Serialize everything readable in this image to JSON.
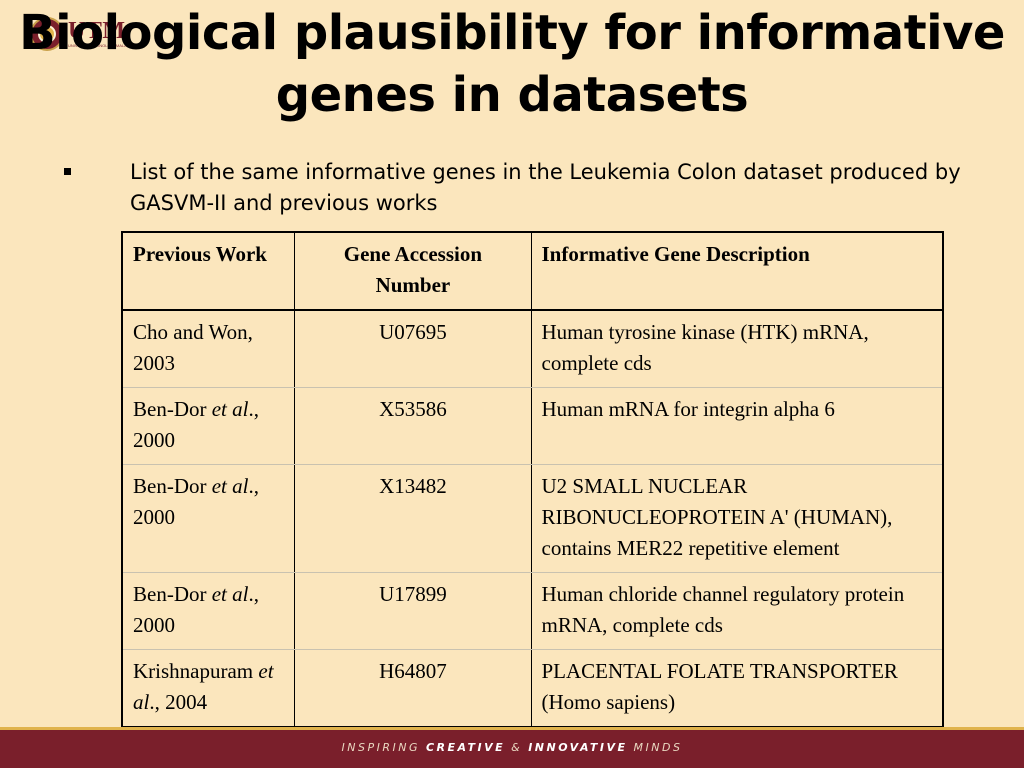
{
  "logo": {
    "text": "UTM",
    "subtext": "UNIVERSITI TEKNOLOGI MALAYSIA"
  },
  "title": "Biological plausibility for informative genes in datasets",
  "intro": "List of the same informative genes in the Leukemia Colon dataset produced by GASVM-II and previous works",
  "table": {
    "headers": [
      "Previous Work",
      "Gene Accession Number",
      "Informative Gene Description"
    ],
    "rows": [
      {
        "author": "Cho and Won, ",
        "etal": "",
        "year": "2003",
        "accession": "U07695",
        "description": "Human tyrosine kinase (HTK) mRNA, complete cds"
      },
      {
        "author": "Ben-Dor ",
        "etal": "et al",
        "year": "., 2000",
        "accession": "X53586",
        "description": "Human mRNA for integrin alpha 6"
      },
      {
        "author": "Ben-Dor ",
        "etal": "et al",
        "year": "., 2000",
        "accession": "X13482",
        "description": "U2 SMALL NUCLEAR RIBONUCLEOPROTEIN A' (HUMAN), contains MER22 repetitive element"
      },
      {
        "author": "Ben-Dor ",
        "etal": "et al",
        "year": "., 2000",
        "accession": "U17899",
        "description": "Human chloride channel regulatory protein mRNA, complete cds"
      },
      {
        "author": "Krishnapuram ",
        "etal": "et al",
        "year": "., 2004",
        "accession": "H64807",
        "description": "PLACENTAL FOLATE TRANSPORTER (Homo sapiens)"
      }
    ]
  },
  "footer": {
    "tag_part1": "INSPIRING ",
    "tag_part2": "CREATIVE",
    "tag_part3": " & ",
    "tag_part4": "INNOVATIVE",
    "tag_part5": " MINDS"
  }
}
